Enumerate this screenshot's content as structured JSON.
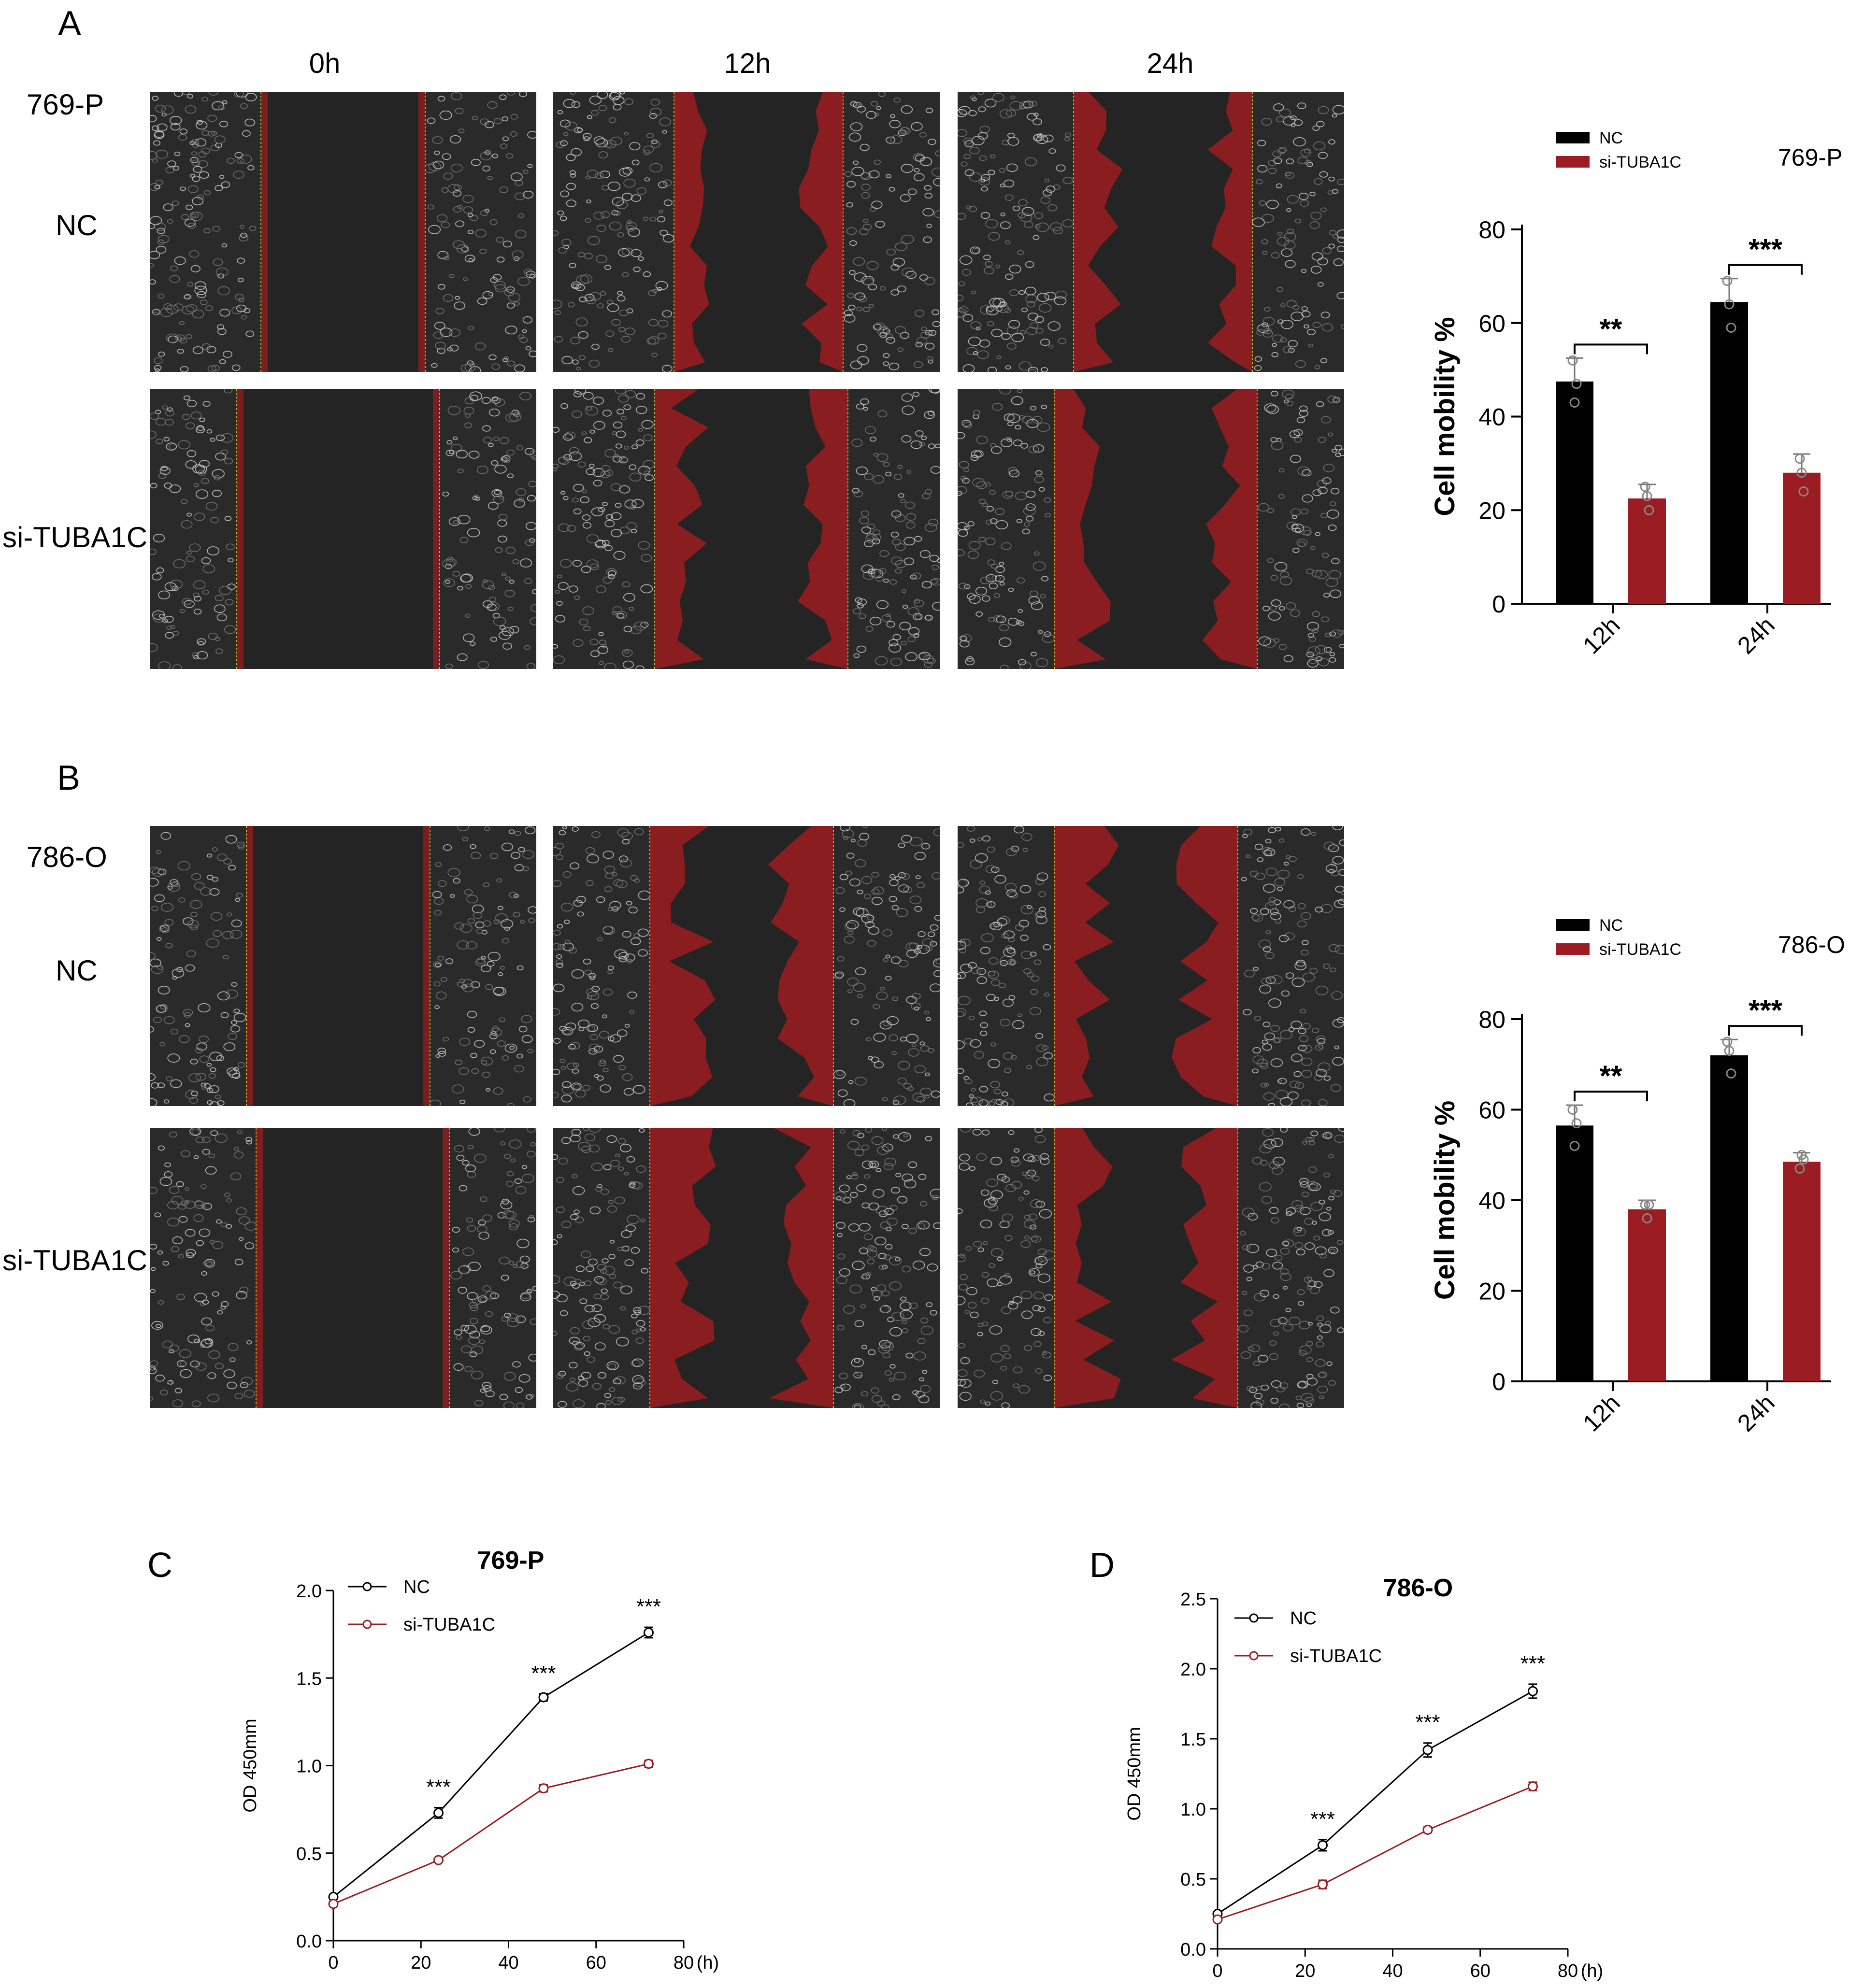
{
  "panels": {
    "A": {
      "letter": "A",
      "cell_line": "769-P",
      "time_labels": [
        "0h",
        "12h",
        "24h"
      ],
      "row_labels": [
        "NC",
        "si-TUBA1C"
      ]
    },
    "B": {
      "letter": "B",
      "cell_line": "786-O",
      "row_labels": [
        "NC",
        "si-TUBA1C"
      ]
    },
    "C": {
      "letter": "C"
    },
    "D": {
      "letter": "D"
    }
  },
  "colors": {
    "nc": "#000000",
    "si": "#9b1c22",
    "micro_bg": "#1e1e1e",
    "overlay": "#a01c1e"
  },
  "chart_data": [
    {
      "id": "bar-769P",
      "type": "bar",
      "title": "769-P",
      "ylabel": "Cell mobility %",
      "categories": [
        "12h",
        "24h"
      ],
      "ylim": [
        0,
        80
      ],
      "yticks": [
        0,
        20,
        40,
        60,
        80
      ],
      "legend": "top-left",
      "series": [
        {
          "name": "NC",
          "values": [
            47.5,
            64.5
          ],
          "errors": [
            5,
            5
          ],
          "points": [
            [
              52,
              43,
              47
            ],
            [
              69,
              64,
              59
            ]
          ]
        },
        {
          "name": "si-TUBA1C",
          "values": [
            22.5,
            28
          ],
          "errors": [
            3,
            4
          ],
          "points": [
            [
              25,
              23,
              20
            ],
            [
              31,
              28,
              24
            ]
          ]
        }
      ],
      "significance": [
        "**",
        "***"
      ]
    },
    {
      "id": "bar-786O",
      "type": "bar",
      "title": "786-O",
      "ylabel": "Cell mobility %",
      "categories": [
        "12h",
        "24h"
      ],
      "ylim": [
        0,
        80
      ],
      "yticks": [
        0,
        20,
        40,
        60,
        80
      ],
      "legend": "top-left",
      "series": [
        {
          "name": "NC",
          "values": [
            56.5,
            72
          ],
          "errors": [
            4.5,
            3.5
          ],
          "points": [
            [
              60,
              52,
              57
            ],
            [
              75,
              73,
              68
            ]
          ]
        },
        {
          "name": "si-TUBA1C",
          "values": [
            38,
            48.5
          ],
          "errors": [
            2,
            2
          ],
          "points": [
            [
              39,
              36,
              39
            ],
            [
              47,
              50,
              49
            ]
          ]
        }
      ],
      "significance": [
        "**",
        "***"
      ]
    },
    {
      "id": "line-769P",
      "type": "line",
      "title": "769-P",
      "ylabel": "OD  450mm",
      "xlabel": "(h)",
      "xlim": [
        0,
        80
      ],
      "ylim": [
        0,
        2.0
      ],
      "xticks": [
        0,
        20,
        40,
        60,
        80
      ],
      "yticks": [
        "0.0",
        "0.5",
        "1.0",
        "1.5",
        "2.0"
      ],
      "x": [
        0,
        24,
        48,
        72
      ],
      "series": [
        {
          "name": "NC",
          "values": [
            0.25,
            0.73,
            1.39,
            1.76
          ],
          "errors": [
            0.01,
            0.03,
            0.02,
            0.03
          ]
        },
        {
          "name": "si-TUBA1C",
          "values": [
            0.21,
            0.46,
            0.87,
            1.01
          ],
          "errors": [
            0.01,
            0.01,
            0.02,
            0.02
          ]
        }
      ],
      "annotations": [
        {
          "x": 24,
          "text": "***"
        },
        {
          "x": 48,
          "text": "***"
        },
        {
          "x": 72,
          "text": "***"
        }
      ]
    },
    {
      "id": "line-786O",
      "type": "line",
      "title": "786-O",
      "ylabel": "OD  450mm",
      "xlabel": "(h)",
      "xlim": [
        0,
        80
      ],
      "ylim": [
        0,
        2.5
      ],
      "xticks": [
        0,
        20,
        40,
        60,
        80
      ],
      "yticks": [
        "0.0",
        "0.5",
        "1.0",
        "1.5",
        "2.0",
        "2.5"
      ],
      "x": [
        0,
        24,
        48,
        72
      ],
      "series": [
        {
          "name": "NC",
          "values": [
            0.25,
            0.74,
            1.42,
            1.84
          ],
          "errors": [
            0.01,
            0.04,
            0.05,
            0.05
          ]
        },
        {
          "name": "si-TUBA1C",
          "values": [
            0.21,
            0.46,
            0.85,
            1.16
          ],
          "errors": [
            0.01,
            0.03,
            0.02,
            0.03
          ]
        }
      ],
      "annotations": [
        {
          "x": 24,
          "text": "***"
        },
        {
          "x": 48,
          "text": "***"
        },
        {
          "x": 72,
          "text": "***"
        }
      ]
    }
  ]
}
